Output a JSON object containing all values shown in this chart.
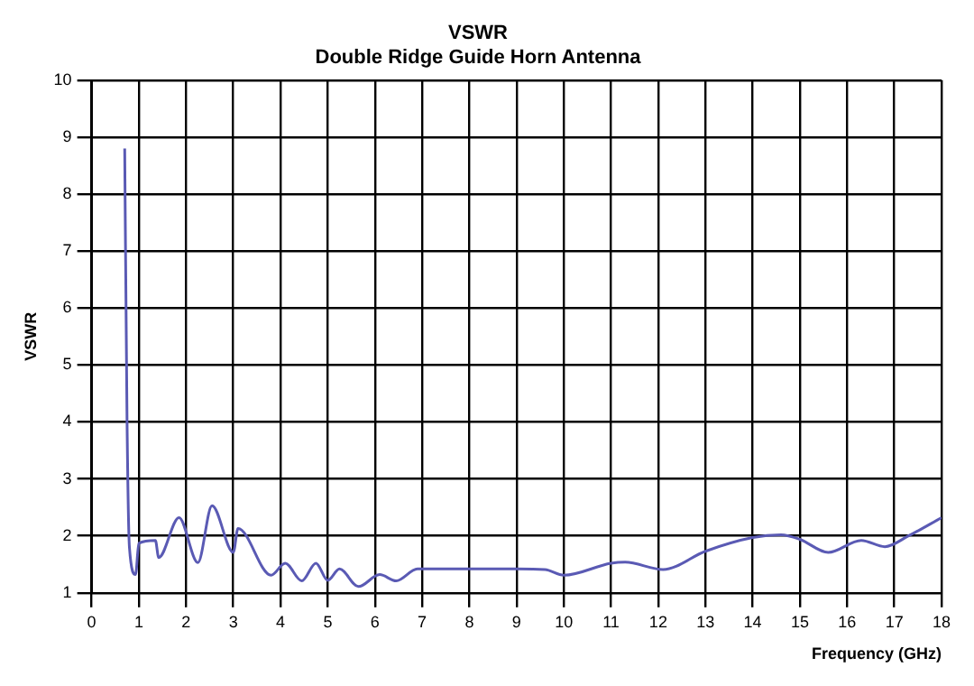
{
  "chart_data": {
    "type": "line",
    "title": "VSWR",
    "subtitle": "Double Ridge Guide Horn Antenna",
    "xlabel": "Frequency (GHz)",
    "ylabel": "VSWR",
    "x": [
      0.7,
      0.75,
      0.8,
      0.93,
      1.0,
      1.35,
      1.42,
      1.85,
      2.25,
      2.55,
      3.0,
      3.1,
      3.8,
      4.1,
      4.45,
      4.75,
      5.0,
      5.25,
      5.65,
      6.1,
      6.45,
      6.9,
      8.0,
      9.0,
      9.6,
      10.0,
      11.0,
      11.3,
      12.1,
      13.0,
      14.0,
      14.6,
      15.0,
      15.6,
      16.3,
      16.8,
      17.3,
      18.0
    ],
    "series": [
      {
        "color": "#5a5ab4",
        "values": [
          8.8,
          4.0,
          1.8,
          1.32,
          1.87,
          1.92,
          1.62,
          2.32,
          1.53,
          2.53,
          1.71,
          2.13,
          1.31,
          1.52,
          1.21,
          1.52,
          1.22,
          1.42,
          1.11,
          1.32,
          1.21,
          1.42,
          1.42,
          1.42,
          1.41,
          1.31,
          1.52,
          1.54,
          1.41,
          1.73,
          1.97,
          2.02,
          1.94,
          1.71,
          1.92,
          1.81,
          2.0,
          2.32
        ]
      }
    ],
    "xlim": [
      0,
      18
    ],
    "xticks": [
      0,
      1,
      2,
      3,
      4,
      5,
      6,
      7,
      8,
      9,
      10,
      11,
      12,
      13,
      14,
      15,
      16,
      17,
      18
    ],
    "ylim": [
      1,
      10
    ],
    "yticks": [
      1,
      2,
      3,
      4,
      5,
      6,
      7,
      8,
      9,
      10
    ],
    "grid": true,
    "legend": false,
    "marker": "none",
    "line_style": "solid"
  }
}
